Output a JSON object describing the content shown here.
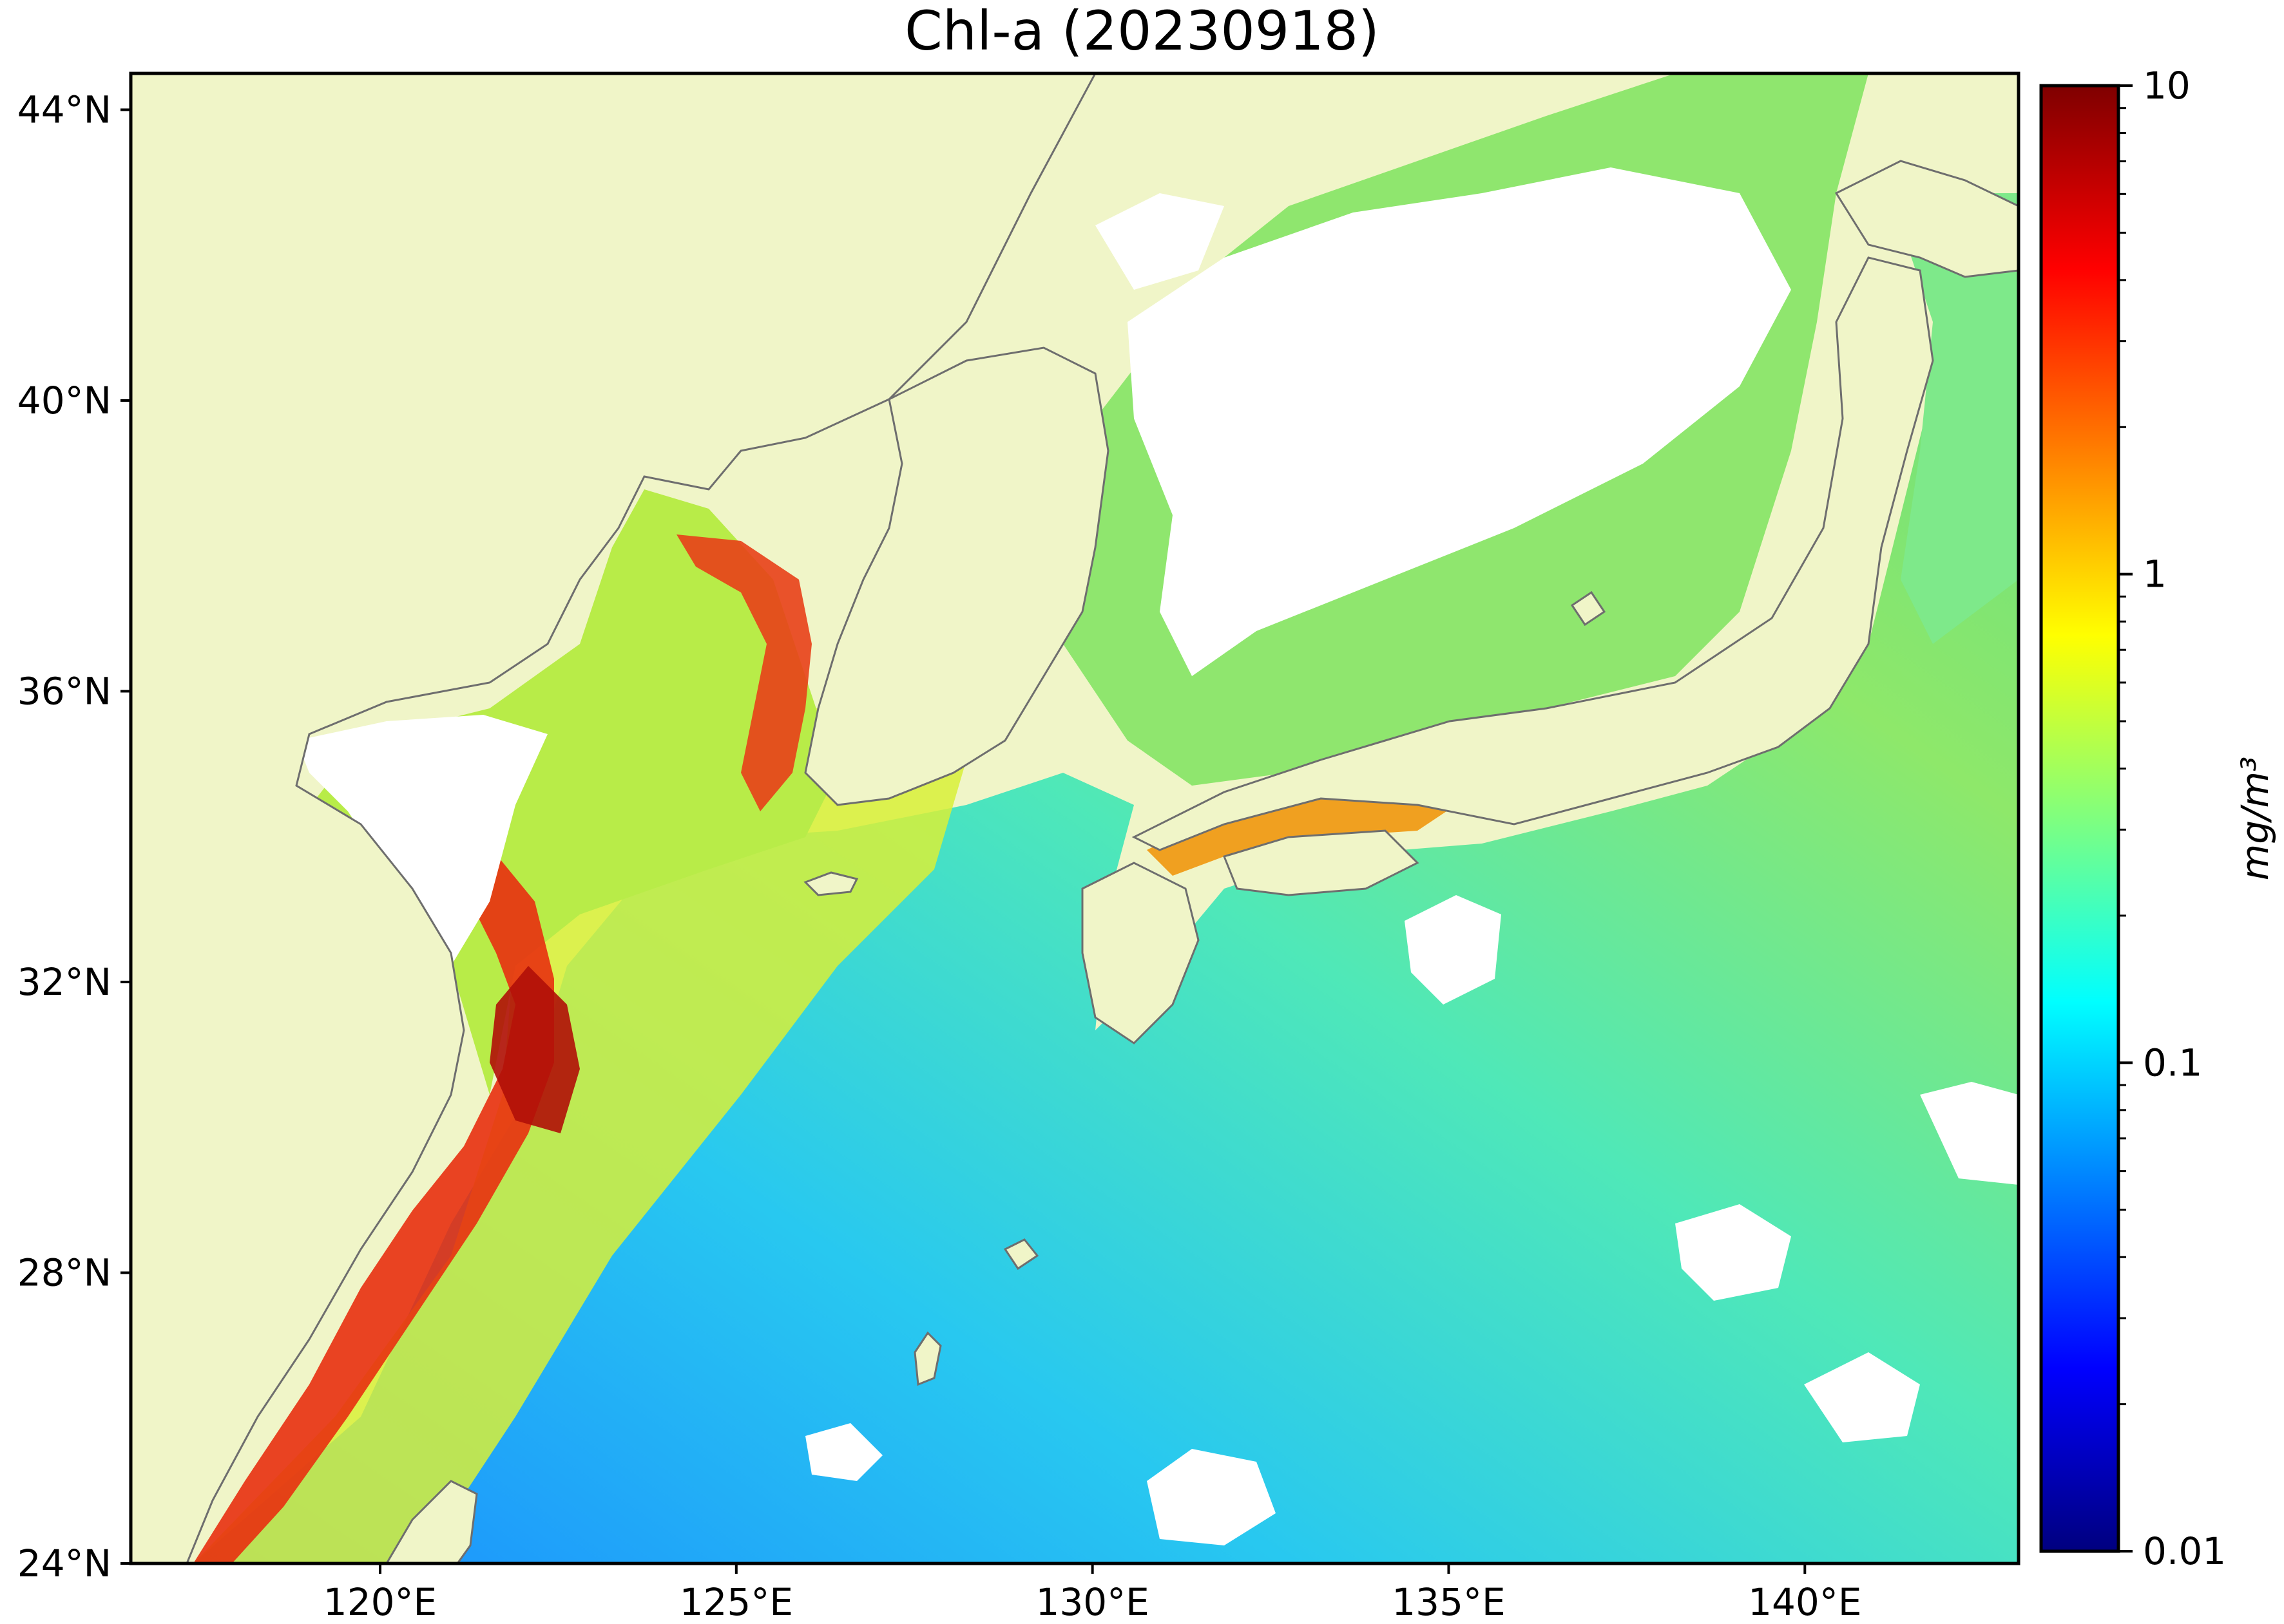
{
  "title": "Chl-a (20230918)",
  "map": {
    "lon_range": [
      116.5,
      143.0
    ],
    "lat_range": [
      24.0,
      44.5
    ],
    "lat_ticks": [
      {
        "value": 24,
        "label": "24°N"
      },
      {
        "value": 28,
        "label": "28°N"
      },
      {
        "value": 32,
        "label": "32°N"
      },
      {
        "value": 36,
        "label": "36°N"
      },
      {
        "value": 40,
        "label": "40°N"
      },
      {
        "value": 44,
        "label": "44°N"
      }
    ],
    "lon_ticks": [
      {
        "value": 120,
        "label": "120°E"
      },
      {
        "value": 125,
        "label": "125°E"
      },
      {
        "value": 130,
        "label": "130°E"
      },
      {
        "value": 135,
        "label": "135°E"
      },
      {
        "value": 140,
        "label": "140°E"
      }
    ],
    "colors": {
      "land": "#f0f5c8",
      "coastline": "#6e6e6e",
      "no_data": "#ffffff"
    }
  },
  "colorbar": {
    "scale": "log",
    "range": [
      0.01,
      10
    ],
    "unit_label": "mg/m³",
    "tick_labels": [
      {
        "value": 10,
        "label": "10"
      },
      {
        "value": 1,
        "label": "1"
      },
      {
        "value": 0.1,
        "label": "0.1"
      },
      {
        "value": 0.01,
        "label": "0.01"
      }
    ],
    "colormap": [
      "#00007f",
      "#0000ff",
      "#007fff",
      "#00ffff",
      "#7fff7f",
      "#ffff00",
      "#ff7f00",
      "#ff0000",
      "#7f0000"
    ]
  }
}
